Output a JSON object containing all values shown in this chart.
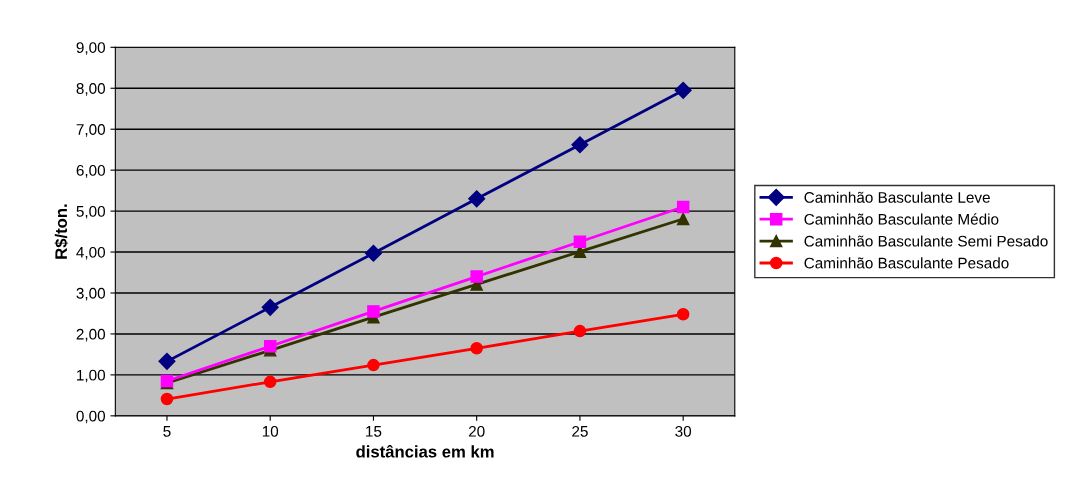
{
  "chart_data": {
    "type": "line",
    "xlabel": "distâncias em km",
    "ylabel": "R$/ton.",
    "categories": [
      "5",
      "10",
      "15",
      "20",
      "25",
      "30"
    ],
    "series": [
      {
        "name": "Caminhão Basculante Leve",
        "color": "#000080",
        "marker": "diamond",
        "values": [
          1.33,
          2.65,
          3.97,
          5.3,
          6.62,
          7.95
        ]
      },
      {
        "name": "Caminhão Basculante Médio",
        "color": "#ff00ff",
        "marker": "square",
        "values": [
          0.85,
          1.7,
          2.55,
          3.4,
          4.25,
          5.1
        ]
      },
      {
        "name": "Caminhão Basculante Semi Pesado",
        "color": "#333300",
        "marker": "triangle",
        "values": [
          0.8,
          1.6,
          2.41,
          3.21,
          4.01,
          4.81
        ]
      },
      {
        "name": "Caminhão Basculante Pesado",
        "color": "#ff0000",
        "marker": "circle",
        "values": [
          0.41,
          0.83,
          1.24,
          1.65,
          2.07,
          2.48
        ]
      }
    ],
    "ylim": [
      0,
      9
    ],
    "yticks": [
      {
        "value": 0,
        "label": "0,00"
      },
      {
        "value": 1,
        "label": "1,00"
      },
      {
        "value": 2,
        "label": "2,00"
      },
      {
        "value": 3,
        "label": "3,00"
      },
      {
        "value": 4,
        "label": "4,00"
      },
      {
        "value": 5,
        "label": "5,00"
      },
      {
        "value": 6,
        "label": "6,00"
      },
      {
        "value": 7,
        "label": "7,00"
      },
      {
        "value": 8,
        "label": "8,00"
      },
      {
        "value": 9,
        "label": "9,00"
      }
    ],
    "grid": "y",
    "legend": "right",
    "line_style": "solid"
  }
}
